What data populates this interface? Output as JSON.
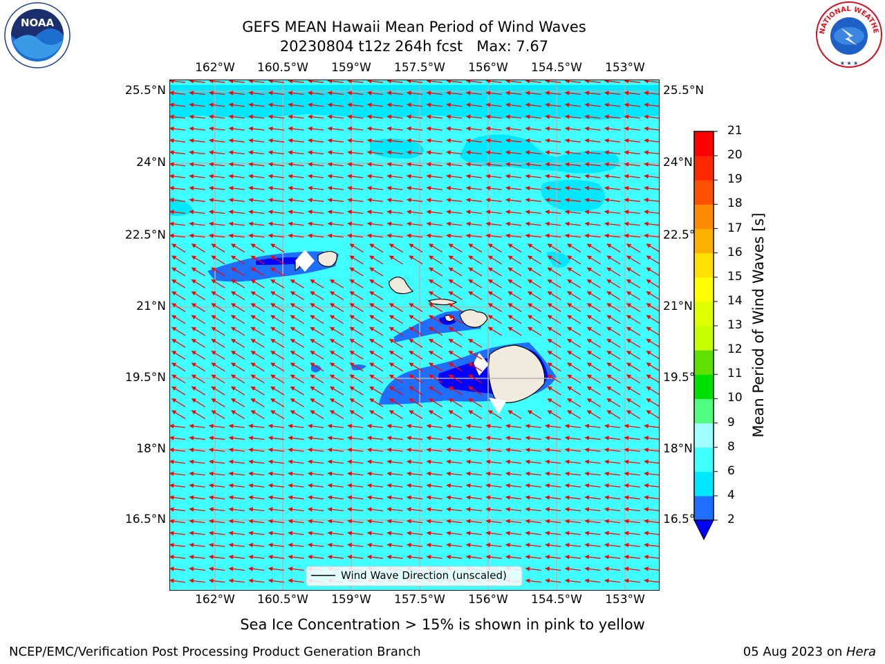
{
  "title_line1": "GEFS MEAN Hawaii Mean Period of Wind Waves",
  "title_line2": "20230804 t12z 264h fcst   Max: 7.67",
  "lon_labels": [
    "162°W",
    "160.5°W",
    "159°W",
    "157.5°W",
    "156°W",
    "154.5°W",
    "153°W"
  ],
  "lat_labels": [
    "25.5°N",
    "24°N",
    "22.5°N",
    "21°N",
    "19.5°N",
    "18°N",
    "16.5°N"
  ],
  "colorbar": {
    "label": "Mean Period of Wind Waves [s]",
    "ticks": [
      "2",
      "4",
      "6",
      "8",
      "9",
      "10",
      "11",
      "12",
      "13",
      "14",
      "15",
      "16",
      "17",
      "18",
      "19",
      "20",
      "21"
    ],
    "colors": [
      "#1e6eff",
      "#00e8ff",
      "#40ffff",
      "#a0ffff",
      "#50ff80",
      "#00e000",
      "#60e000",
      "#c8ff00",
      "#e0ff00",
      "#ffff00",
      "#ffe000",
      "#ffb000",
      "#ff8c00",
      "#ff5000",
      "#ff2800",
      "#ff0000"
    ],
    "under_color": "#0000ff"
  },
  "legend_label": "Wind Wave Direction (unscaled)",
  "sea_ice_note": "Sea Ice Concentration > 15% is shown in pink to yellow",
  "footer_left": "NCEP/EMC/Verification Post Processing Product Generation Branch",
  "footer_date": "05 Aug 2023 on ",
  "footer_host": "Hera",
  "logo_noaa": "NOAA",
  "logo_nws": "NATIONAL WEATHER SERVICE",
  "colors": {
    "sea": "#40ffff",
    "light_sea": "#00e8ff",
    "wave_mid": "#1e6eff",
    "wave_deep": "#0000ff",
    "land": "#f0ebdc",
    "arrow": "#ff0000",
    "grid": "#b4b4b4"
  }
}
